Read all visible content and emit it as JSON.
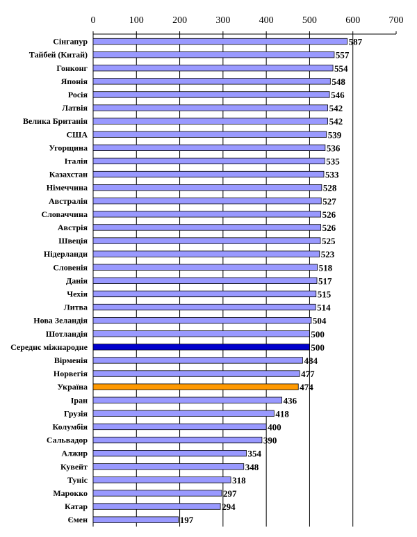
{
  "chart_data": {
    "type": "bar",
    "orientation": "horizontal",
    "xlim": [
      0,
      700
    ],
    "xticks": [
      0,
      100,
      200,
      300,
      400,
      500,
      600,
      700
    ],
    "axis_position": "top",
    "grid": true,
    "legend": "none",
    "categories": [
      "Сінгапур",
      "Тайбей (Китай)",
      "Гонконг",
      "Японія",
      "Росія",
      "Латвія",
      "Велика Британія",
      "США",
      "Угорщина",
      "Італія",
      "Казахстан",
      "Німеччина",
      "Австралія",
      "Словаччина",
      "Австрія",
      "Швеція",
      "Нідерланди",
      "Словенія",
      "Данія",
      "Чехія",
      "Литва",
      "Нова Зеландія",
      "Шотландія",
      "Середнє міжнародне",
      "Вірменія",
      "Норвегія",
      "Україна",
      "Іран",
      "Грузія",
      "Колумбія",
      "Сальвадор",
      "Алжир",
      "Кувейт",
      "Туніс",
      "Марокко",
      "Катар",
      "Ємен"
    ],
    "values": [
      587,
      557,
      554,
      548,
      546,
      542,
      542,
      539,
      536,
      535,
      533,
      528,
      527,
      526,
      526,
      525,
      523,
      518,
      517,
      515,
      514,
      504,
      500,
      500,
      484,
      477,
      474,
      436,
      418,
      400,
      390,
      354,
      348,
      318,
      297,
      294,
      197
    ],
    "colors": {
      "default": "#9999ff",
      "international_average": "#0000cc",
      "ukraine": "#ff9900",
      "outline": "#000000",
      "grid": "#000000"
    },
    "highlight": {
      "Середнє міжнародне": "international_average",
      "Україна": "ukraine"
    }
  }
}
